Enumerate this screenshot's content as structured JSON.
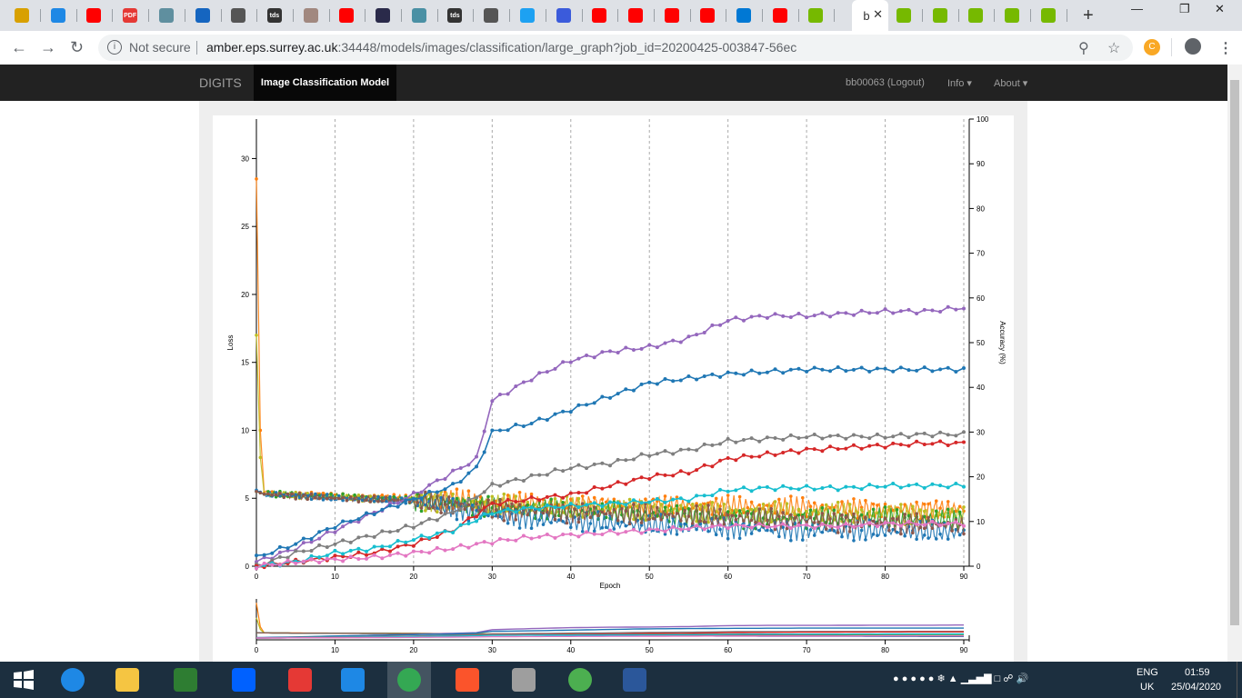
{
  "browser": {
    "tabs": [
      {
        "icon": "surrey-icon",
        "color": "#d8a000"
      },
      {
        "icon": "cloud-icon",
        "color": "#1e88e5"
      },
      {
        "icon": "youtube-icon",
        "color": "#ff0000"
      },
      {
        "icon": "pdf-icon",
        "color": "#e53935",
        "text": "PDF"
      },
      {
        "icon": "gear-icon",
        "color": "#5f8f9f"
      },
      {
        "icon": "accessibility-icon",
        "color": "#1565c0"
      },
      {
        "icon": "person-icon",
        "color": "#555555"
      },
      {
        "icon": "tds-icon",
        "color": "#333333",
        "text": "tds"
      },
      {
        "icon": "paper-icon",
        "color": "#a1887f"
      },
      {
        "icon": "youtube-icon",
        "color": "#ff0000"
      },
      {
        "icon": "book-icon",
        "color": "#2a2a4a"
      },
      {
        "icon": "doc-icon",
        "color": "#4a90a4"
      },
      {
        "icon": "tds-icon",
        "color": "#333333",
        "text": "tds"
      },
      {
        "icon": "person-icon",
        "color": "#555555"
      },
      {
        "icon": "twitter-icon",
        "color": "#1da1f2"
      },
      {
        "icon": "d-icon",
        "color": "#3b5bdb"
      },
      {
        "icon": "youtube-icon",
        "color": "#ff0000"
      },
      {
        "icon": "youtube-icon",
        "color": "#ff0000"
      },
      {
        "icon": "youtube-icon",
        "color": "#ff0000"
      },
      {
        "icon": "youtube-icon",
        "color": "#ff0000"
      },
      {
        "icon": "outlook-icon",
        "color": "#0078d4"
      },
      {
        "icon": "youtube-icon",
        "color": "#ff0000"
      },
      {
        "icon": "nvidia-icon",
        "color": "#76b900"
      }
    ],
    "active_tab": {
      "icon": "page-icon",
      "text": "b"
    },
    "tabs_after": [
      {
        "icon": "nvidia-icon",
        "color": "#76b900"
      },
      {
        "icon": "nvidia-icon",
        "color": "#76b900"
      },
      {
        "icon": "nvidia-icon",
        "color": "#76b900"
      },
      {
        "icon": "nvidia-icon",
        "color": "#76b900"
      },
      {
        "icon": "nvidia-icon",
        "color": "#76b900"
      }
    ],
    "not_secure": "Not secure",
    "url_host": "amber.eps.surrey.ac.uk",
    "url_path": ":34448/models/images/classification/large_graph?job_id=20200425-003847-56ec"
  },
  "navbar": {
    "brand": "DIGITS",
    "active": "Image Classification Model",
    "user": "bb00063 (Logout)",
    "info": "Info",
    "about": "About"
  },
  "chart_data": {
    "type": "line",
    "xlabel": "Epoch",
    "ylabel": "Loss",
    "y2label": "Accuracy (%)",
    "xlim": [
      0,
      90
    ],
    "ylim": [
      0,
      31.5
    ],
    "y2lim": [
      0,
      100
    ],
    "xticks": [
      0,
      10,
      20,
      30,
      40,
      50,
      60,
      70,
      80,
      90
    ],
    "yticks": [
      0,
      5,
      10,
      15,
      20,
      25,
      30
    ],
    "y2ticks": [
      0,
      10,
      20,
      30,
      40,
      50,
      60,
      70,
      80,
      90,
      100
    ],
    "grid_x": true,
    "accuracy_series": [
      {
        "color": "#9467bd",
        "x": [
          0,
          5,
          10,
          15,
          20,
          25,
          28,
          30,
          35,
          40,
          45,
          50,
          55,
          60,
          65,
          70,
          75,
          80,
          85,
          90
        ],
        "y": [
          1,
          4,
          8,
          12,
          16,
          21,
          24,
          37,
          42,
          46,
          48,
          49,
          51,
          55,
          56,
          56,
          56.5,
          57,
          57,
          57.8
        ]
      },
      {
        "color": "#1f77b4",
        "x": [
          0,
          5,
          10,
          15,
          20,
          25,
          28,
          30,
          35,
          40,
          45,
          50,
          55,
          60,
          65,
          70,
          75,
          80,
          85,
          90
        ],
        "y": [
          2,
          5,
          9,
          12,
          15,
          18,
          22,
          30,
          32,
          35,
          38,
          41,
          42,
          43,
          43.5,
          44,
          44,
          44,
          44,
          44
        ]
      },
      {
        "color": "#7f7f7f",
        "x": [
          0,
          5,
          10,
          15,
          20,
          25,
          30,
          35,
          40,
          45,
          50,
          55,
          60,
          65,
          70,
          75,
          80,
          85,
          90
        ],
        "y": [
          0,
          3,
          5,
          7,
          9,
          12,
          18,
          20,
          22,
          23,
          25,
          26,
          28,
          28.5,
          29,
          29,
          29,
          29.5,
          29.5
        ]
      },
      {
        "color": "#d62728",
        "x": [
          0,
          5,
          10,
          15,
          20,
          25,
          30,
          35,
          40,
          45,
          50,
          55,
          60,
          65,
          70,
          75,
          80,
          85,
          90
        ],
        "y": [
          0,
          1,
          2,
          3,
          5,
          8,
          14,
          15,
          16,
          18,
          20,
          21,
          24,
          25,
          26,
          26.5,
          27,
          27.5,
          27.5
        ]
      },
      {
        "color": "#17becf",
        "x": [
          0,
          5,
          10,
          15,
          20,
          25,
          30,
          35,
          40,
          45,
          50,
          55,
          60,
          65,
          70,
          75,
          80,
          85,
          90
        ],
        "y": [
          0,
          1,
          3,
          4,
          6,
          8,
          12,
          13,
          13.5,
          14,
          14.5,
          15,
          17,
          17.5,
          17.5,
          17.5,
          18,
          18,
          18
        ]
      },
      {
        "color": "#e377c2",
        "x": [
          0,
          5,
          10,
          15,
          20,
          25,
          30,
          35,
          40,
          45,
          50,
          55,
          60,
          65,
          70,
          75,
          80,
          85,
          90
        ],
        "y": [
          0,
          1,
          1.5,
          2,
          3,
          4,
          5.5,
          6.5,
          7,
          7.5,
          8,
          8.5,
          9,
          9,
          9,
          9,
          9.5,
          9.5,
          9.5
        ]
      }
    ],
    "loss_series": [
      {
        "color": "#ff7f0e",
        "x": [
          0,
          0.5,
          1,
          5,
          10,
          20,
          30,
          40,
          50,
          60,
          70,
          80,
          90
        ],
        "y": [
          28.5,
          10,
          5.4,
          5.3,
          5.2,
          5.0,
          4.7,
          4.5,
          4.5,
          4.4,
          4.3,
          4.2,
          4.2
        ]
      },
      {
        "color": "#bcbd22",
        "x": [
          0,
          0.5,
          1,
          5,
          10,
          20,
          30,
          40,
          50,
          60,
          70,
          80,
          90
        ],
        "y": [
          17,
          8,
          5.3,
          5.2,
          5.1,
          4.9,
          4.5,
          4.3,
          4.2,
          4.0,
          3.9,
          3.8,
          3.8
        ]
      },
      {
        "color": "#2ca02c",
        "x": [
          0,
          1,
          5,
          10,
          20,
          30,
          40,
          50,
          60,
          70,
          80,
          90
        ],
        "y": [
          5.5,
          5.3,
          5.2,
          5.1,
          4.9,
          4.4,
          4.0,
          3.8,
          3.6,
          3.5,
          3.5,
          3.4
        ]
      },
      {
        "color": "#1f77b4",
        "x": [
          0,
          1,
          5,
          10,
          20,
          30,
          40,
          50,
          60,
          70,
          80,
          90
        ],
        "y": [
          5.6,
          5.3,
          5.2,
          5.0,
          4.8,
          3.8,
          3.3,
          3.0,
          2.8,
          2.7,
          2.6,
          2.5
        ]
      },
      {
        "color": "#8c564b",
        "x": [
          0,
          1,
          5,
          10,
          20,
          30,
          40,
          50,
          60,
          70,
          80,
          90
        ],
        "y": [
          5.5,
          5.3,
          5.2,
          5.0,
          4.8,
          4.2,
          4.0,
          3.8,
          3.6,
          3.4,
          3.2,
          3.0
        ]
      }
    ]
  },
  "taskbar": {
    "apps": [
      {
        "icon": "ie-icon",
        "color": "#1e88e5"
      },
      {
        "icon": "file-explorer-icon",
        "color": "#f5c542"
      },
      {
        "icon": "store-icon",
        "color": "#2e7d32"
      },
      {
        "icon": "dropbox-icon",
        "color": "#0061ff"
      },
      {
        "icon": "paint-icon",
        "color": "#e53935"
      },
      {
        "icon": "onedrive-icon",
        "color": "#1e88e5"
      },
      {
        "icon": "chrome-icon",
        "color": "#34a853"
      },
      {
        "icon": "brave-icon",
        "color": "#fb542b"
      },
      {
        "icon": "r-icon",
        "color": "#9e9e9e"
      },
      {
        "icon": "globe-icon",
        "color": "#4caf50"
      },
      {
        "icon": "word-icon",
        "color": "#2b579a"
      }
    ],
    "lang": "ENG",
    "region": "UK",
    "time": "01:59",
    "date": "25/04/2020"
  }
}
